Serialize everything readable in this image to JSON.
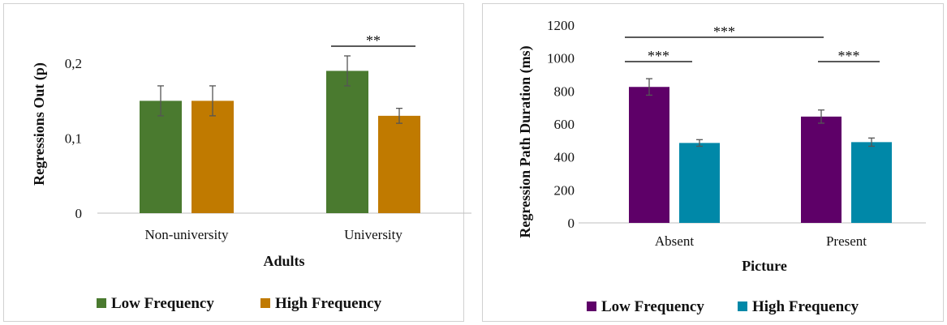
{
  "chart_data": [
    {
      "type": "bar",
      "xlabel": "Adults",
      "ylabel": "Regressions Out (p)",
      "categories": [
        "Non-university",
        "University"
      ],
      "yticks": [
        "0",
        "0,1",
        "0,2"
      ],
      "ylim": [
        0,
        0.25
      ],
      "series": [
        {
          "name": "Low Frequency",
          "color": "#4a7a2f",
          "values": [
            0.15,
            0.19
          ],
          "errors": [
            0.02,
            0.02
          ]
        },
        {
          "name": "High Frequency",
          "color": "#c07a00",
          "values": [
            0.15,
            0.13
          ],
          "errors": [
            0.02,
            0.01
          ]
        }
      ],
      "annotations": [
        {
          "text": "**",
          "category": "University"
        }
      ],
      "grid": false,
      "legend": "bottom"
    },
    {
      "type": "bar",
      "xlabel": "Picture",
      "ylabel": "Regression Path Duration (ms)",
      "categories": [
        "Absent",
        "Present"
      ],
      "yticks": [
        "0",
        "200",
        "400",
        "600",
        "800",
        "1000",
        "1200"
      ],
      "ylim": [
        0,
        1200
      ],
      "series": [
        {
          "name": "Low Frequency",
          "color": "#5e0068",
          "values": [
            825,
            645
          ],
          "errors": [
            50,
            40
          ]
        },
        {
          "name": "High Frequency",
          "color": "#0088a8",
          "values": [
            485,
            490
          ],
          "errors": [
            20,
            25
          ]
        }
      ],
      "annotations": [
        {
          "text": "***",
          "category": "Absent"
        },
        {
          "text": "***",
          "category": "Present"
        },
        {
          "text": "***",
          "between": "Absent-Present"
        }
      ],
      "grid": false,
      "legend": "bottom"
    }
  ]
}
